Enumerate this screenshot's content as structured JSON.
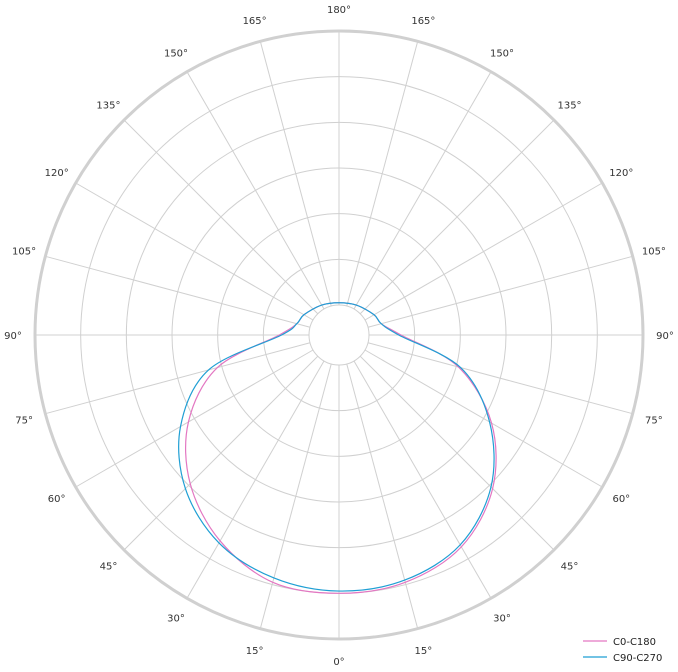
{
  "chart_data": {
    "type": "line",
    "subtype": "polar-luminous-intensity",
    "angle_labels": [
      {
        "deg": 0,
        "text": "0°"
      },
      {
        "deg": 15,
        "text": "15°"
      },
      {
        "deg": 30,
        "text": "30°"
      },
      {
        "deg": 45,
        "text": "45°"
      },
      {
        "deg": 60,
        "text": "60°"
      },
      {
        "deg": 75,
        "text": "75°"
      },
      {
        "deg": 90,
        "text": "90°"
      },
      {
        "deg": 105,
        "text": "105°"
      },
      {
        "deg": 120,
        "text": "120°"
      },
      {
        "deg": 135,
        "text": "135°"
      },
      {
        "deg": 150,
        "text": "150°"
      },
      {
        "deg": 165,
        "text": "165°"
      },
      {
        "deg": 180,
        "text": "180°"
      },
      {
        "deg": 195,
        "text": "165°"
      },
      {
        "deg": 210,
        "text": "150°"
      },
      {
        "deg": 225,
        "text": "135°"
      },
      {
        "deg": 240,
        "text": "120°"
      },
      {
        "deg": 255,
        "text": "105°"
      },
      {
        "deg": 270,
        "text": "90°"
      },
      {
        "deg": 285,
        "text": "75°"
      },
      {
        "deg": 300,
        "text": "60°"
      },
      {
        "deg": 315,
        "text": "45°"
      },
      {
        "deg": 330,
        "text": "30°"
      },
      {
        "deg": 345,
        "text": "15°"
      }
    ],
    "radial_rings": 7,
    "rmax": 7,
    "legend": {
      "placement": "bottom-right"
    },
    "grid": true,
    "series": [
      {
        "name": "C0-C180",
        "color": "#e377c2",
        "points": [
          [
            0,
            5.0
          ],
          [
            15,
            4.95
          ],
          [
            30,
            4.7
          ],
          [
            45,
            4.1
          ],
          [
            60,
            3.2
          ],
          [
            75,
            2.05
          ],
          [
            90,
            0.7
          ],
          [
            105,
            0.3
          ],
          [
            120,
            0.23
          ],
          [
            150,
            0.1
          ],
          [
            180,
            0.05
          ],
          [
            210,
            0.1
          ],
          [
            240,
            0.23
          ],
          [
            255,
            0.3
          ],
          [
            270,
            0.65
          ],
          [
            285,
            2.1
          ],
          [
            300,
            3.15
          ],
          [
            315,
            3.95
          ],
          [
            330,
            4.55
          ],
          [
            345,
            4.95
          ],
          [
            360,
            5.0
          ]
        ]
      },
      {
        "name": "C90-C270",
        "color": "#1f9fd4",
        "points": [
          [
            0,
            4.95
          ],
          [
            15,
            4.9
          ],
          [
            30,
            4.65
          ],
          [
            45,
            4.05
          ],
          [
            60,
            3.15
          ],
          [
            75,
            2.1
          ],
          [
            90,
            0.65
          ],
          [
            105,
            0.3
          ],
          [
            120,
            0.23
          ],
          [
            150,
            0.1
          ],
          [
            180,
            0.05
          ],
          [
            210,
            0.1
          ],
          [
            240,
            0.23
          ],
          [
            255,
            0.3
          ],
          [
            270,
            0.6
          ],
          [
            285,
            2.3
          ],
          [
            300,
            3.35
          ],
          [
            315,
            4.1
          ],
          [
            330,
            4.6
          ],
          [
            345,
            4.85
          ],
          [
            360,
            4.95
          ]
        ]
      }
    ]
  }
}
